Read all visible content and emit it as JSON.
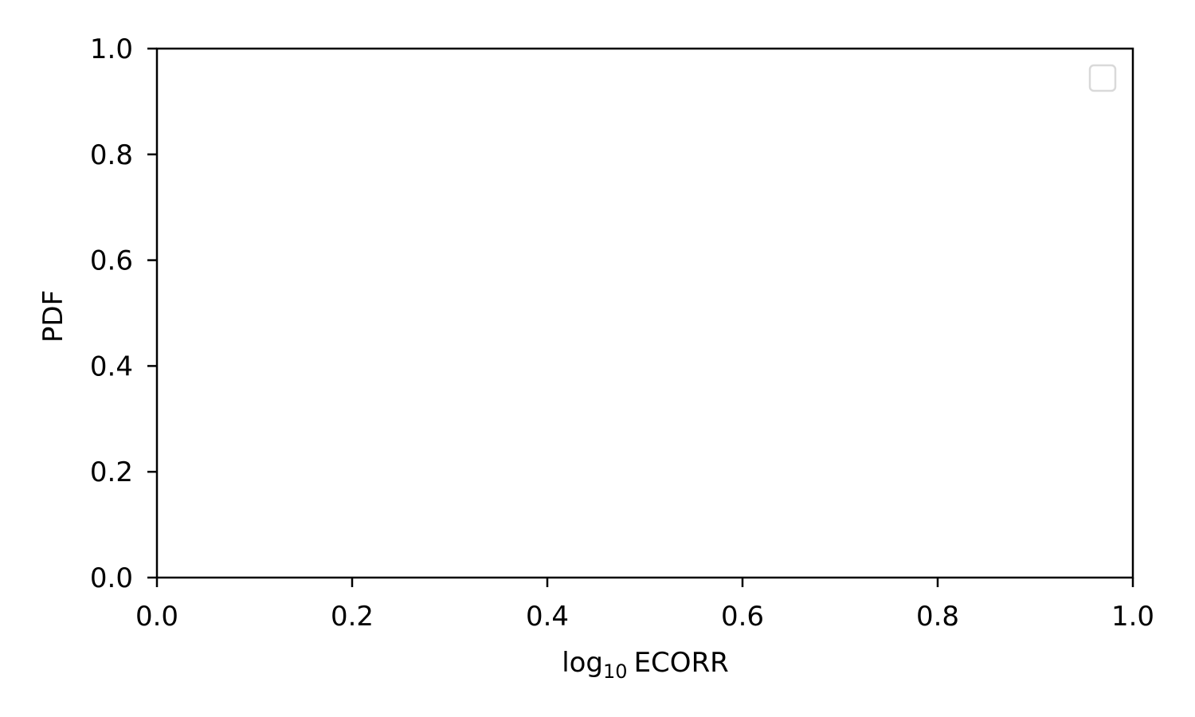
{
  "chart_data": {
    "type": "line",
    "title": "",
    "xlabel_base": "log",
    "xlabel_subscript": "10",
    "xlabel_rest": "ECORR",
    "ylabel": "PDF",
    "xlim": [
      0.0,
      1.0
    ],
    "ylim": [
      0.0,
      1.0
    ],
    "xticks": [
      "0.0",
      "0.2",
      "0.4",
      "0.6",
      "0.8",
      "1.0"
    ],
    "yticks": [
      "0.0",
      "0.2",
      "0.4",
      "0.6",
      "0.8",
      "1.0"
    ],
    "series": [],
    "grid": false,
    "legend": {
      "placement": "upper right",
      "entries": []
    },
    "colors": {
      "axis": "#000000",
      "legend_border": "#d9d9d9",
      "background": "#ffffff"
    }
  }
}
